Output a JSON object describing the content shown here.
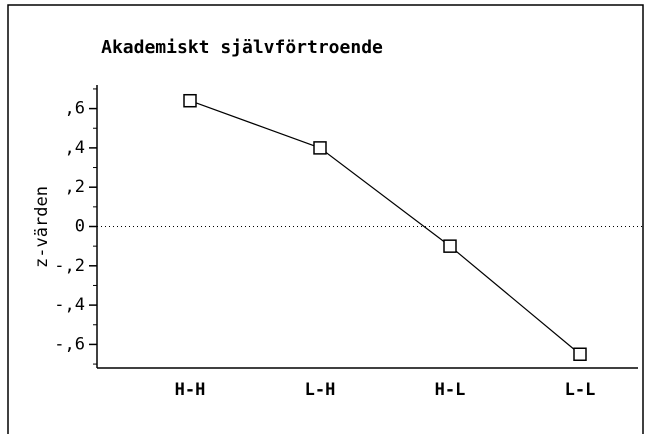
{
  "chart_data": {
    "type": "line",
    "title": "Akademiskt självförtroende",
    "ylabel": "z-värden",
    "categories": [
      "H-H",
      "L-H",
      "H-L",
      "L-L"
    ],
    "values": [
      0.64,
      0.4,
      -0.1,
      -0.65
    ],
    "color": "#000000",
    "ylim": [
      -0.72,
      0.72
    ],
    "yticks": [
      {
        "value": 0.6,
        "label": ",6"
      },
      {
        "value": 0.4,
        "label": ",4"
      },
      {
        "value": 0.2,
        "label": ",2"
      },
      0,
      {
        "value": -0.2,
        "label": "-,2"
      },
      {
        "value": -0.4,
        "label": "-,4"
      },
      {
        "value": -0.6,
        "label": "-,6"
      }
    ],
    "yticks_minor": [
      0.7,
      0.5,
      0.3,
      0.1,
      -0.1,
      -0.3,
      -0.5,
      -0.7
    ],
    "reference_line": 0,
    "marker": "square"
  }
}
